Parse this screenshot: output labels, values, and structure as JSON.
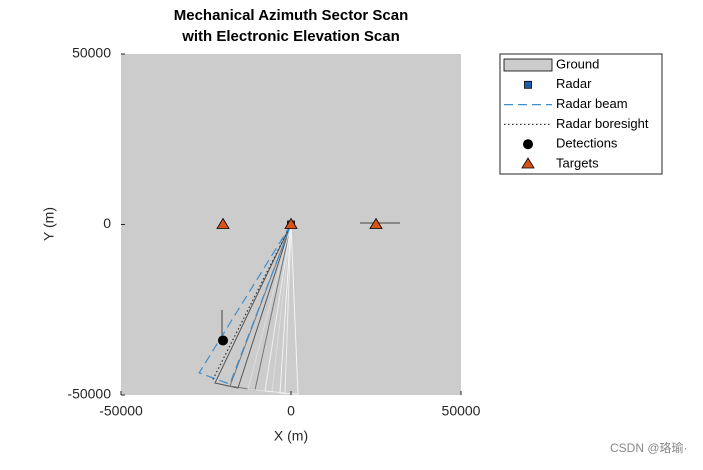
{
  "chart_data": {
    "type": "scatter",
    "title": "Mechanical Azimuth Sector Scan",
    "subtitle": "with Electronic Elevation Scan",
    "x_label": "X (m)",
    "y_label": "Y (m)",
    "xlim": [
      -50000,
      50000
    ],
    "ylim": [
      -50000,
      50000
    ],
    "xticks": [
      -50000,
      0,
      50000
    ],
    "yticks": [
      -50000,
      0,
      50000
    ],
    "legend": "outside-top-right",
    "series": [
      {
        "name": "Ground",
        "color": "#cccccc",
        "style": "patch"
      },
      {
        "name": "Radar",
        "color": "#1f5fa8",
        "style": "square",
        "x": [
          0
        ],
        "y": [
          0
        ]
      },
      {
        "name": "Radar beam",
        "color": "#3d8fd1",
        "style": "dashed",
        "x": [
          0,
          -27000,
          -18000,
          0
        ],
        "y": [
          0,
          -43500,
          -46800,
          0
        ]
      },
      {
        "name": "Radar boresight",
        "color": "#333333",
        "style": "dotted",
        "x": [
          0,
          -23000
        ],
        "y": [
          0,
          -45500
        ]
      },
      {
        "name": "Detections",
        "color": "#000000",
        "style": "circle",
        "x": [
          -20000
        ],
        "y": [
          -34000
        ]
      },
      {
        "name": "Targets",
        "color": "#d95319",
        "style": "triangle",
        "x": [
          -20000,
          0,
          25000
        ],
        "y": [
          0,
          0,
          0
        ]
      }
    ],
    "watermark": "CSDN @珞瑜·"
  }
}
